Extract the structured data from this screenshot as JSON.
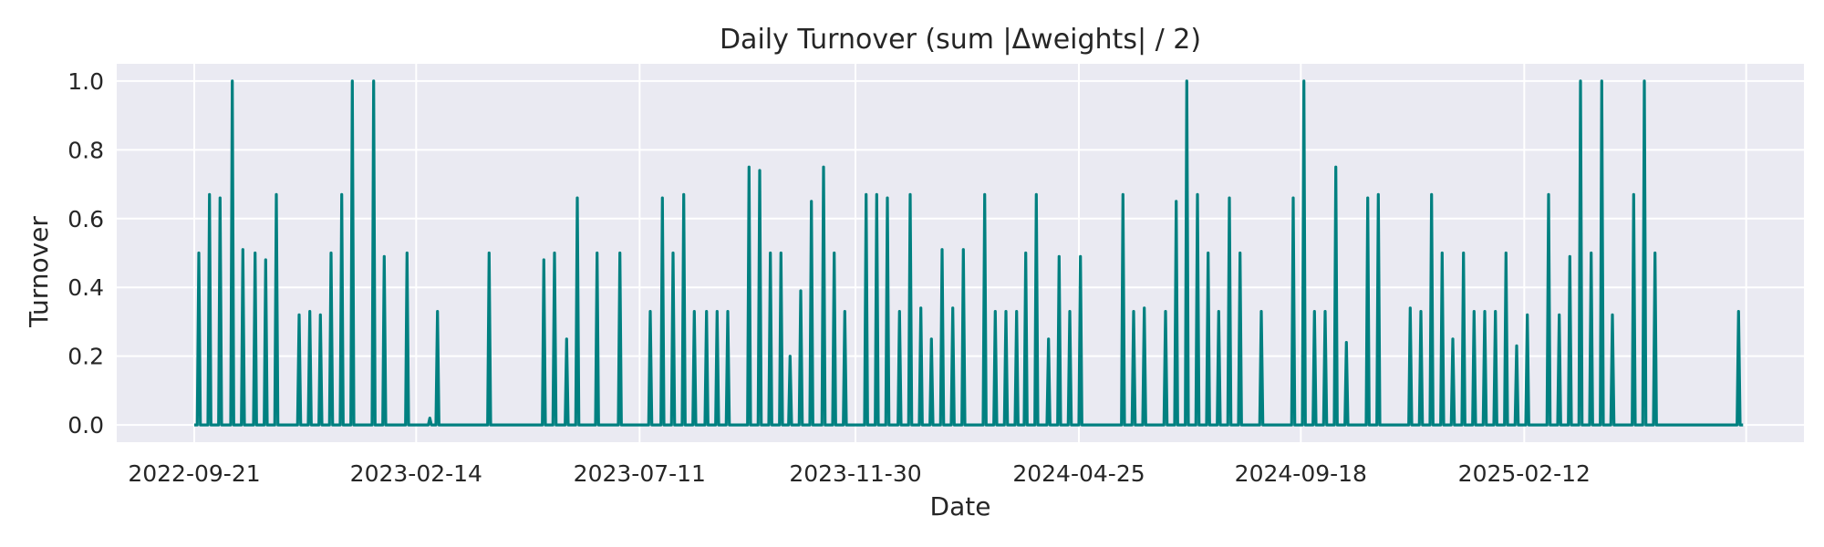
{
  "chart_data": {
    "type": "line",
    "title": "Daily Turnover (sum |Δweights| / 2)",
    "xlabel": "Date",
    "ylabel": "Turnover",
    "x_range": [
      "2022-08-01",
      "2025-08-15"
    ],
    "ylim": [
      -0.05,
      1.05
    ],
    "x_ticks": [
      "2022-09-21",
      "2023-02-14",
      "2023-07-11",
      "2023-11-30",
      "2024-04-25",
      "2024-09-18",
      "2025-02-12"
    ],
    "y_ticks": [
      0.0,
      0.2,
      0.4,
      0.6,
      0.8,
      1.0
    ],
    "y_tick_labels": [
      "0.0",
      "0.2",
      "0.4",
      "0.6",
      "0.8",
      "1.0"
    ],
    "grid": true,
    "legend": "none",
    "colors": {
      "line": "#008080",
      "plot_bg": "#eaeaf2",
      "grid": "#ffffff",
      "text": "#262626"
    },
    "series": [
      {
        "x": [
          "2022-09-21",
          "2022-09-24",
          "2022-10-01",
          "2022-10-08",
          "2022-10-16",
          "2022-10-23",
          "2022-10-31",
          "2022-11-07",
          "2022-11-14",
          "2022-11-29",
          "2022-12-06",
          "2022-12-13",
          "2022-12-20",
          "2022-12-27",
          "2023-01-03",
          "2023-01-17",
          "2023-01-24",
          "2023-02-08",
          "2023-02-23",
          "2023-02-28",
          "2023-04-03",
          "2023-05-09",
          "2023-05-16",
          "2023-05-24",
          "2023-05-31",
          "2023-06-13",
          "2023-06-28",
          "2023-07-18",
          "2023-07-26",
          "2023-08-02",
          "2023-08-09",
          "2023-08-16",
          "2023-08-24",
          "2023-08-31",
          "2023-09-07",
          "2023-09-21",
          "2023-09-28",
          "2023-10-05",
          "2023-10-12",
          "2023-10-18",
          "2023-10-25",
          "2023-11-01",
          "2023-11-09",
          "2023-11-16",
          "2023-11-23",
          "2023-12-07",
          "2023-12-14",
          "2023-12-21",
          "2023-12-29",
          "2024-01-05",
          "2024-01-12",
          "2024-01-19",
          "2024-01-26",
          "2024-02-02",
          "2024-02-09",
          "2024-02-23",
          "2024-03-01",
          "2024-03-08",
          "2024-03-15",
          "2024-03-21",
          "2024-03-28",
          "2024-04-05",
          "2024-04-12",
          "2024-04-19",
          "2024-04-26",
          "2024-05-24",
          "2024-05-31",
          "2024-06-07",
          "2024-06-21",
          "2024-06-28",
          "2024-07-05",
          "2024-07-12",
          "2024-07-19",
          "2024-07-26",
          "2024-08-02",
          "2024-08-09",
          "2024-08-23",
          "2024-09-13",
          "2024-09-20",
          "2024-09-27",
          "2024-10-04",
          "2024-10-11",
          "2024-10-18",
          "2024-11-01",
          "2024-11-08",
          "2024-11-29",
          "2024-12-06",
          "2024-12-13",
          "2024-12-20",
          "2024-12-27",
          "2025-01-03",
          "2025-01-10",
          "2025-01-17",
          "2025-01-24",
          "2025-01-31",
          "2025-02-07",
          "2025-02-14",
          "2025-02-28",
          "2025-03-07",
          "2025-03-14",
          "2025-03-21",
          "2025-03-28",
          "2025-04-04",
          "2025-04-11",
          "2025-04-25",
          "2025-05-02",
          "2025-05-09",
          "2025-07-03"
        ],
        "values": [
          0.0,
          0.5,
          0.67,
          0.66,
          1.0,
          0.51,
          0.5,
          0.48,
          0.67,
          0.32,
          0.33,
          0.32,
          0.5,
          0.67,
          1.0,
          1.0,
          0.49,
          0.5,
          0.02,
          0.33,
          0.5,
          0.48,
          0.5,
          0.25,
          0.66,
          0.5,
          0.5,
          0.33,
          0.66,
          0.5,
          0.67,
          0.33,
          0.33,
          0.33,
          0.33,
          0.75,
          0.74,
          0.5,
          0.5,
          0.2,
          0.39,
          0.65,
          0.75,
          0.5,
          0.33,
          0.67,
          0.67,
          0.66,
          0.33,
          0.67,
          0.34,
          0.25,
          0.51,
          0.34,
          0.51,
          0.67,
          0.33,
          0.33,
          0.33,
          0.5,
          0.67,
          0.25,
          0.49,
          0.33,
          0.49,
          0.67,
          0.33,
          0.34,
          0.33,
          0.65,
          1.0,
          0.67,
          0.5,
          0.33,
          0.66,
          0.5,
          0.33,
          0.66,
          1.0,
          0.33,
          0.33,
          0.75,
          0.24,
          0.66,
          0.67,
          0.34,
          0.33,
          0.67,
          0.5,
          0.25,
          0.5,
          0.33,
          0.33,
          0.33,
          0.5,
          0.23,
          0.32,
          0.67,
          0.32,
          0.49,
          1.0,
          0.5,
          1.0,
          0.32,
          0.67,
          1.0,
          0.5,
          0.33
        ]
      }
    ]
  }
}
